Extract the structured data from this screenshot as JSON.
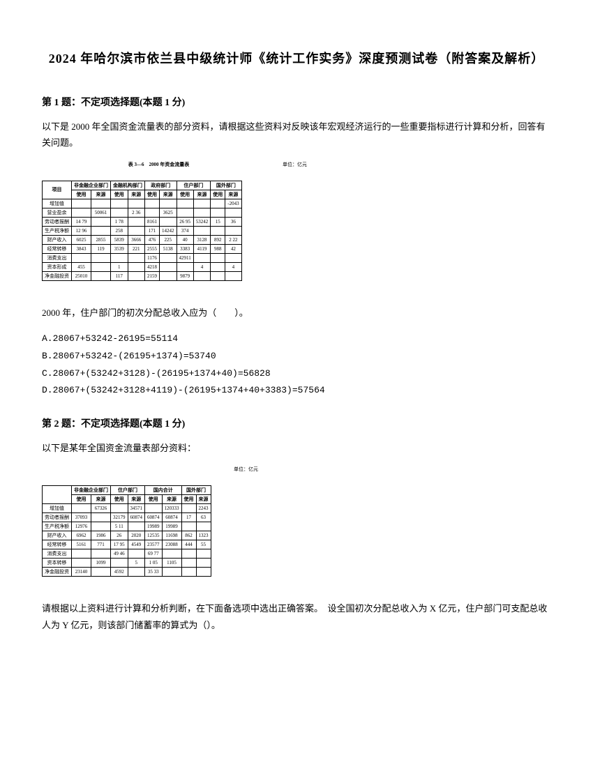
{
  "page_title": "2024 年哈尔滨市依兰县中级统计师《统计工作实务》深度预测试卷（附答案及解析）",
  "q1": {
    "header": "第 1 题：不定项选择题(本题 1 分)",
    "body": "以下是 2000 年全国资金流量表的部分资料，请根据这些资料对反映该年宏观经济运行的一些重要指标进行计算和分析，回答有关问题。",
    "table": {
      "caption": "表 3—6　2000 年资金流量表",
      "unit": "单位：亿元",
      "col_groups": [
        "项目",
        "非金融企业部门",
        "金融机构部门",
        "政府部门",
        "住户部门",
        "国外部门"
      ],
      "sub_cols": [
        "使用",
        "来源",
        "使用",
        "来源",
        "使用",
        "来源",
        "使用",
        "来源",
        "使用",
        "来源"
      ],
      "rows": [
        [
          "增加值",
          "",
          "",
          "",
          "",
          "",
          "",
          "",
          "",
          "",
          "-2043"
        ],
        [
          "营业盈余",
          "",
          "50061",
          "",
          "2 36",
          "",
          "3625",
          "",
          "",
          "",
          ""
        ],
        [
          "劳动者报酬",
          "14 79",
          "",
          "1 78",
          "",
          "8161",
          "",
          "26 95",
          "53242",
          "15",
          "36"
        ],
        [
          "生产税净额",
          "12 96",
          "",
          "258",
          "",
          "171",
          "14242",
          "374",
          "",
          "",
          ""
        ],
        [
          "财产收入",
          "6025",
          "2855",
          "5839",
          "3666",
          "476",
          "225",
          "40",
          "3128",
          "892",
          "2 22"
        ],
        [
          "经常转移",
          "3843",
          "119",
          "3539",
          "221",
          "2555",
          "5138",
          "3383",
          "4119",
          "988",
          "42"
        ],
        [
          "消费支出",
          "",
          "",
          "",
          "",
          "1176",
          "",
          "42911",
          "",
          "",
          ""
        ],
        [
          "资本形成",
          "455",
          "",
          "1",
          "",
          "4218",
          "",
          "",
          "4",
          "",
          "4"
        ],
        [
          "净金融投资",
          "25010",
          "",
          "117",
          "",
          "2159",
          "",
          "9879",
          "",
          "",
          ""
        ]
      ]
    },
    "stem": "2000 年，住户部门的初次分配总收入应为（　　）。",
    "options": [
      "A.28067+53242-26195=55114",
      "B.28067+53242-(26195+1374)=53740",
      "C.28067+(53242+3128)-(26195+1374+40)=56828",
      "D.28067+(53242+3128+4119)-(26195+1374+40+3383)=57564"
    ]
  },
  "q2": {
    "header": "第 2 题：不定项选择题(本题 1 分)",
    "body": "以下是某年全国资金流量表部分资料：",
    "table": {
      "unit": "单位：亿元",
      "col_groups": [
        "",
        "非金融企业部门",
        "住户部门",
        "国内合计",
        "国外部门"
      ],
      "sub_cols": [
        "使用",
        "来源",
        "使用",
        "来源",
        "使用",
        "来源",
        "使用",
        "来源"
      ],
      "rows": [
        [
          "增加值",
          "",
          "67326",
          "",
          "34571",
          "",
          "120333",
          "",
          "2243"
        ],
        [
          "劳动者报酬",
          "37093",
          "",
          "32179",
          "60874",
          "60874",
          "60874",
          "17",
          "63"
        ],
        [
          "生产税净额",
          "12976",
          "",
          "5 11",
          "",
          "19989",
          "19989",
          "",
          ""
        ],
        [
          "财产收入",
          "6962",
          "1986",
          "26",
          "2020",
          "12535",
          "11698",
          "862",
          "1323"
        ],
        [
          "经常转移",
          "5161",
          "771",
          "17 95",
          "4549",
          "23577",
          "23088",
          "444",
          "55"
        ],
        [
          "消费支出",
          "",
          "",
          "49 46",
          "",
          "69 77",
          "",
          "",
          ""
        ],
        [
          "资本转移",
          "",
          "1099",
          "",
          "5",
          "1 05",
          "1105",
          "",
          ""
        ],
        [
          "净金融投资",
          "23140",
          "",
          "4592",
          "",
          "35 33",
          "",
          "",
          ""
        ]
      ]
    },
    "stem": "请根据以上资料进行计算和分析判断，在下面备选项中选出正确答案。　设全国初次分配总收入为 X 亿元，住户部门可支配总收人为 Y 亿元，则该部门储蓄率的算式为（）。"
  }
}
